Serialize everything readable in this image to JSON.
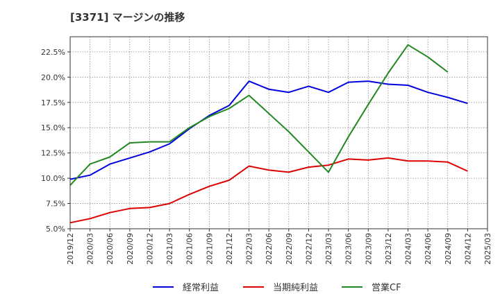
{
  "chart_data": {
    "type": "line",
    "title": "[3371]  マージンの推移",
    "x": [
      "2019/12",
      "2020/03",
      "2020/06",
      "2020/09",
      "2020/12",
      "2021/03",
      "2021/06",
      "2021/09",
      "2021/12",
      "2022/03",
      "2022/06",
      "2022/09",
      "2022/12",
      "2023/03",
      "2023/06",
      "2023/09",
      "2023/12",
      "2024/03",
      "2024/06",
      "2024/09",
      "2024/12",
      "2025/03"
    ],
    "xlim": [
      "2019/12",
      "2025/03"
    ],
    "ylim": [
      5.0,
      24.0
    ],
    "yticks": [
      5.0,
      7.5,
      10.0,
      12.5,
      15.0,
      17.5,
      20.0,
      22.5
    ],
    "ytick_labels": [
      "5.0%",
      "7.5%",
      "10.0%",
      "12.5%",
      "15.0%",
      "17.5%",
      "20.0%",
      "22.5%"
    ],
    "grid": true,
    "legend_position": "bottom",
    "series": [
      {
        "name": "経常利益",
        "color": "#0000dd",
        "values": [
          9.9,
          10.3,
          11.4,
          12.0,
          12.6,
          13.4,
          14.9,
          16.2,
          17.2,
          19.6,
          18.8,
          18.5,
          19.1,
          18.5,
          19.5,
          19.6,
          19.3,
          19.2,
          18.5,
          18.0,
          17.4,
          null
        ]
      },
      {
        "name": "当期純利益",
        "color": "#dd0000",
        "values": [
          5.6,
          6.0,
          6.6,
          7.0,
          7.1,
          7.5,
          8.4,
          9.2,
          9.8,
          11.2,
          10.8,
          10.6,
          11.1,
          11.3,
          11.9,
          11.8,
          12.0,
          11.7,
          11.7,
          11.6,
          10.7,
          null
        ]
      },
      {
        "name": "営業CF",
        "color": "#228822",
        "values": [
          9.3,
          11.4,
          12.1,
          13.5,
          13.6,
          13.6,
          15.0,
          16.1,
          16.9,
          18.2,
          16.4,
          14.6,
          12.6,
          10.6,
          14.1,
          17.3,
          20.4,
          23.2,
          22.0,
          20.5,
          null,
          null
        ]
      }
    ]
  }
}
